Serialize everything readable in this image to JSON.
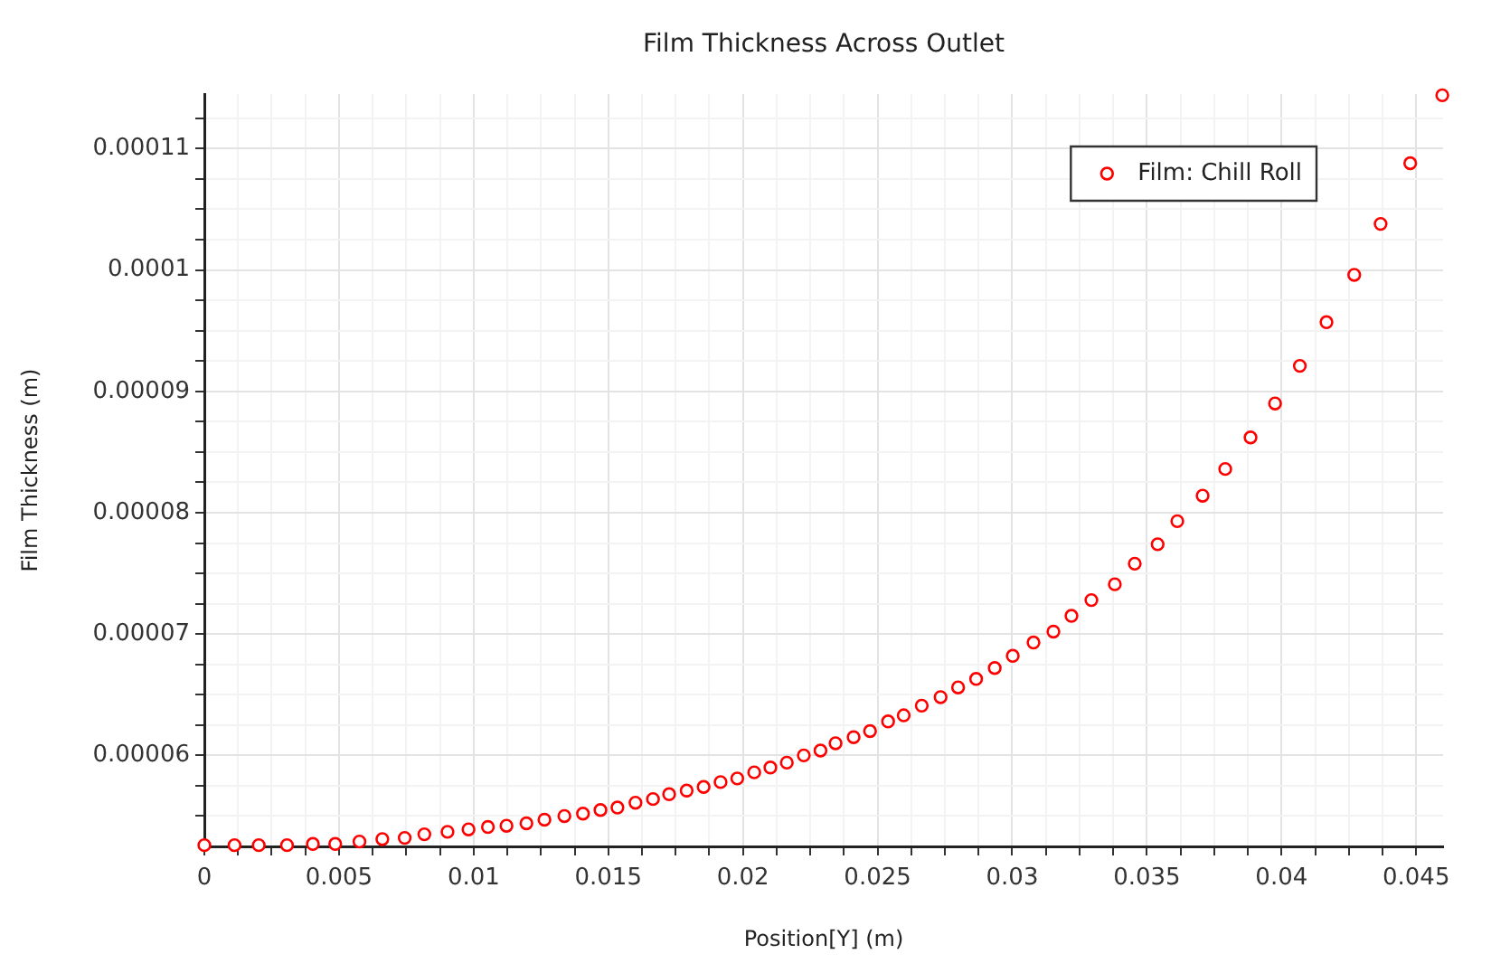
{
  "chart_data": {
    "type": "scatter",
    "title": "Film Thickness Across Outlet",
    "xlabel": "Position[Y] (m)",
    "ylabel": "Film Thickness (m)",
    "x": [
      0,
      0.00112,
      0.00202,
      0.00307,
      0.00403,
      0.00486,
      0.00576,
      0.00661,
      0.00744,
      0.00817,
      0.00903,
      0.00981,
      0.01053,
      0.01122,
      0.01196,
      0.01263,
      0.01337,
      0.01406,
      0.01471,
      0.01534,
      0.01601,
      0.01666,
      0.01726,
      0.01791,
      0.01854,
      0.01917,
      0.01979,
      0.02042,
      0.02102,
      0.02163,
      0.02226,
      0.02288,
      0.02344,
      0.02411,
      0.02472,
      0.02539,
      0.02597,
      0.02664,
      0.02734,
      0.02799,
      0.02866,
      0.02935,
      0.03002,
      0.03079,
      0.03153,
      0.0322,
      0.03294,
      0.03381,
      0.03455,
      0.0354,
      0.03613,
      0.03707,
      0.03791,
      0.03885,
      0.03976,
      0.04068,
      0.04167,
      0.0427,
      0.04368,
      0.04478,
      0.04597
    ],
    "series": [
      {
        "name": "Film: Chill Roll",
        "color": "#ff0000",
        "values": [
          5.26e-05,
          5.26e-05,
          5.26e-05,
          5.26e-05,
          5.27e-05,
          5.27e-05,
          5.29e-05,
          5.31e-05,
          5.32e-05,
          5.35e-05,
          5.37e-05,
          5.39e-05,
          5.41e-05,
          5.42e-05,
          5.44e-05,
          5.47e-05,
          5.5e-05,
          5.52e-05,
          5.55e-05,
          5.57e-05,
          5.61e-05,
          5.64e-05,
          5.68e-05,
          5.71e-05,
          5.74e-05,
          5.78e-05,
          5.81e-05,
          5.86e-05,
          5.9e-05,
          5.94e-05,
          6e-05,
          6.04e-05,
          6.1e-05,
          6.15e-05,
          6.2e-05,
          6.28e-05,
          6.33e-05,
          6.41e-05,
          6.48e-05,
          6.56e-05,
          6.63e-05,
          6.72e-05,
          6.82e-05,
          6.93e-05,
          7.02e-05,
          7.15e-05,
          7.28e-05,
          7.41e-05,
          7.58e-05,
          7.74e-05,
          7.93e-05,
          8.14e-05,
          8.36e-05,
          8.62e-05,
          8.9e-05,
          9.21e-05,
          9.57e-05,
          9.96e-05,
          0.0001038,
          0.0001088,
          0.0001144
        ]
      }
    ],
    "xlim": [
      0,
      0.046
    ],
    "ylim": [
      5.25e-05,
      0.0001145
    ],
    "xticks": [
      0,
      {
        "value": 0.00125,
        "label": null
      },
      {
        "value": 0.0025,
        "label": null
      },
      {
        "value": 0.00375,
        "label": null
      },
      0.005,
      {
        "value": 0.00625,
        "label": null
      },
      {
        "value": 0.0075,
        "label": null
      },
      {
        "value": 0.00875,
        "label": null
      },
      0.01,
      {
        "value": 0.01125,
        "label": null
      },
      {
        "value": 0.0125,
        "label": null
      },
      {
        "value": 0.01375,
        "label": null
      },
      0.015,
      {
        "value": 0.01625,
        "label": null
      },
      {
        "value": 0.0175,
        "label": null
      },
      {
        "value": 0.01875,
        "label": null
      },
      0.02,
      {
        "value": 0.02125,
        "label": null
      },
      {
        "value": 0.0225,
        "label": null
      },
      {
        "value": 0.02375,
        "label": null
      },
      0.025,
      {
        "value": 0.02625,
        "label": null
      },
      {
        "value": 0.0275,
        "label": null
      },
      {
        "value": 0.02875,
        "label": null
      },
      0.03,
      {
        "value": 0.03125,
        "label": null
      },
      {
        "value": 0.0325,
        "label": null
      },
      {
        "value": 0.03375,
        "label": null
      },
      0.035,
      {
        "value": 0.03625,
        "label": null
      },
      {
        "value": 0.0375,
        "label": null
      },
      {
        "value": 0.03875,
        "label": null
      },
      0.04,
      {
        "value": 0.04125,
        "label": null
      },
      {
        "value": 0.0425,
        "label": null
      },
      {
        "value": 0.04375,
        "label": null
      },
      0.045
    ],
    "yticks": [
      {
        "value": 5.5e-05,
        "label": null
      },
      {
        "value": 5.75e-05,
        "label": null
      },
      {
        "value": 6e-05,
        "label": "0.00006"
      },
      {
        "value": 6.25e-05,
        "label": null
      },
      {
        "value": 6.5e-05,
        "label": null
      },
      {
        "value": 6.75e-05,
        "label": null
      },
      {
        "value": 7e-05,
        "label": "0.00007"
      },
      {
        "value": 7.25e-05,
        "label": null
      },
      {
        "value": 7.5e-05,
        "label": null
      },
      {
        "value": 7.75e-05,
        "label": null
      },
      {
        "value": 8e-05,
        "label": "0.00008"
      },
      {
        "value": 8.25e-05,
        "label": null
      },
      {
        "value": 8.5e-05,
        "label": null
      },
      {
        "value": 8.75e-05,
        "label": null
      },
      {
        "value": 9e-05,
        "label": "0.00009"
      },
      {
        "value": 9.25e-05,
        "label": null
      },
      {
        "value": 9.5e-05,
        "label": null
      },
      {
        "value": 9.75e-05,
        "label": null
      },
      {
        "value": 0.0001,
        "label": "0.0001"
      },
      {
        "value": 0.0001025,
        "label": null
      },
      {
        "value": 0.000105,
        "label": null
      },
      {
        "value": 0.0001075,
        "label": null
      },
      {
        "value": 0.00011,
        "label": "0.00011"
      },
      {
        "value": 0.0001125,
        "label": null
      }
    ],
    "grid": true,
    "legend": "top right",
    "marker": "circle"
  }
}
